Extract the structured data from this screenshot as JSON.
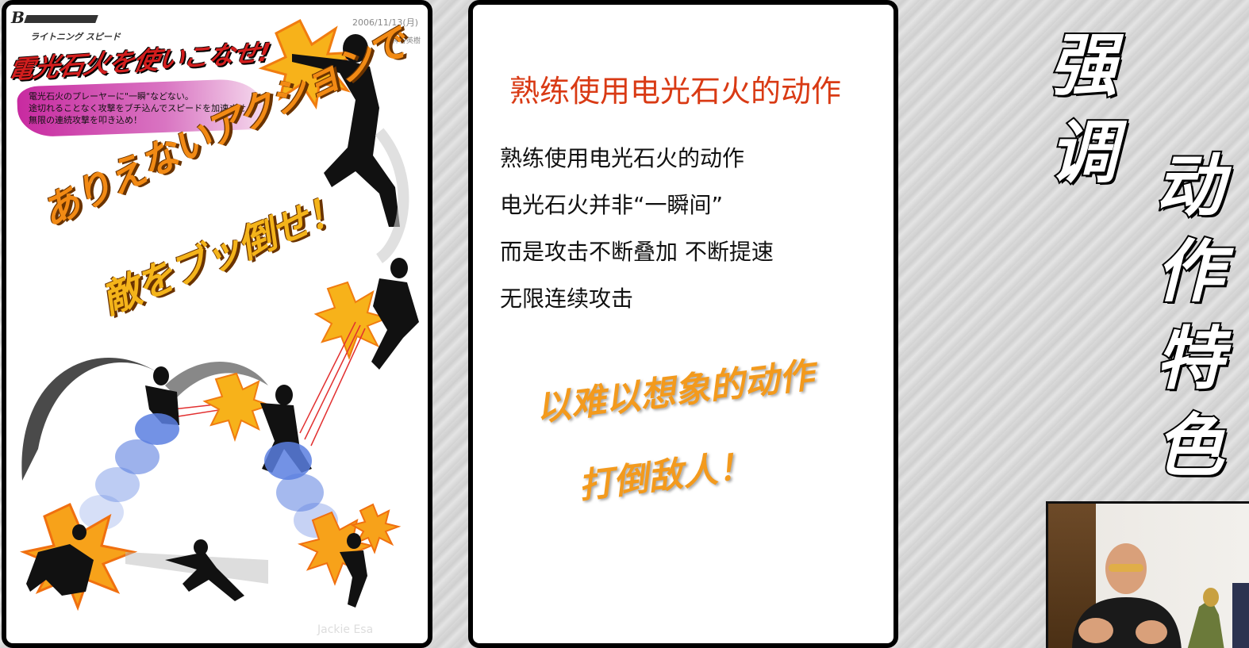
{
  "left_page": {
    "logo_text": "B",
    "date": "2006/11/13(月)",
    "author": "神谷英樹",
    "kana_sub": "ライトニング スピード",
    "title": "電光石火を使いこなせ!",
    "description_lines": [
      "電光石火のプレーヤーに\"一瞬\"などない。",
      "途切れることなく攻撃をブチ込んでスピードを加速させ、",
      "無限の連続攻撃を叩き込め！"
    ],
    "big_line_1": "ありえないアクションで",
    "big_line_2": "敵をブッ倒せ！",
    "watermark": "Jackie Esa"
  },
  "mid_page": {
    "title": "熟练使用电光石火的动作",
    "lines": [
      "熟练使用电光石火的动作",
      "电光石火并非“一瞬间”",
      "而是攻击不断叠加 不断提速",
      "无限连续攻击"
    ],
    "orange_line_1": "以难以想象的动作",
    "orange_line_2": "打倒敌人！"
  },
  "caption": {
    "col1": [
      "强",
      "调"
    ],
    "col2": [
      "动",
      "作",
      "特",
      "色"
    ]
  },
  "colors": {
    "title_red": "#d93a14",
    "orange": "#f39a1d"
  }
}
